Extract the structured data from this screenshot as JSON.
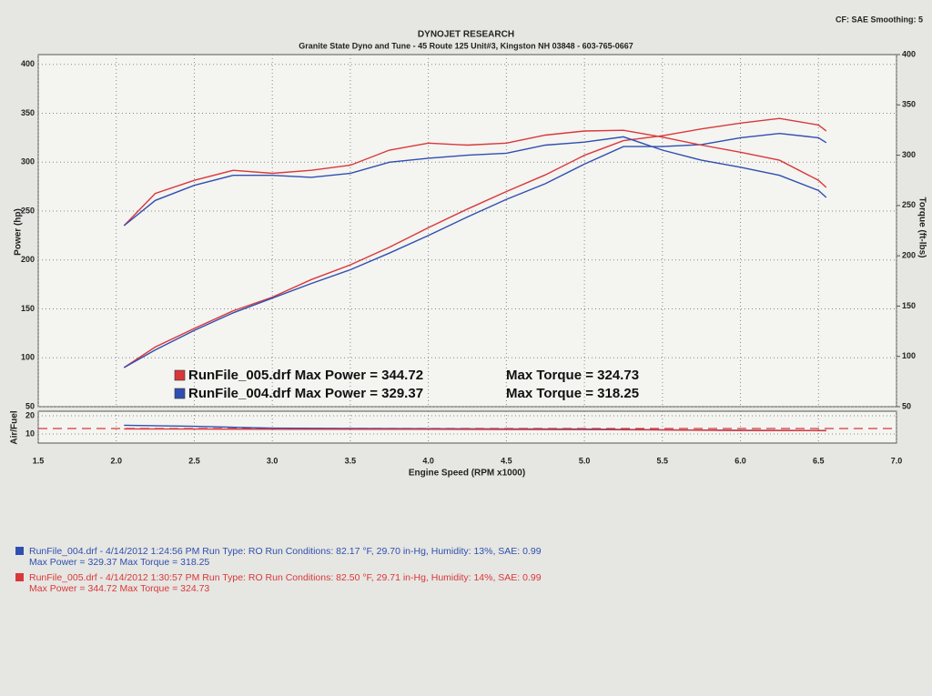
{
  "chart_data": [
    {
      "type": "line",
      "title": "DYNOJET RESEARCH",
      "subtitle": "Granite State Dyno and Tune - 45 Route 125 Unit#3, Kingston NH 03848 - 603-765-0667",
      "corner_note": "CF: SAE Smoothing: 5",
      "ylabel": "Power (hp)",
      "y2label": "Torque (ft-lbs)",
      "xlim": [
        1.5,
        7.0
      ],
      "ylim": [
        50,
        410
      ],
      "yticks": [
        50,
        100,
        150,
        200,
        250,
        300,
        350,
        400
      ],
      "y2lim": [
        50,
        400
      ],
      "y2ticks": [
        50,
        100,
        150,
        200,
        250,
        300,
        350,
        400
      ],
      "grid": true,
      "x": [
        2.05,
        2.25,
        2.5,
        2.75,
        3.0,
        3.25,
        3.5,
        3.75,
        4.0,
        4.25,
        4.5,
        4.75,
        5.0,
        5.25,
        5.5,
        5.75,
        6.0,
        6.25,
        6.5,
        6.55
      ],
      "series": [
        {
          "name": "RunFile_005.drf Max Power = 344.72",
          "color": "#d9383a",
          "values": [
            90,
            111,
            130,
            148,
            162,
            180,
            195,
            213,
            233,
            252,
            270,
            287,
            307,
            322,
            327,
            334,
            340,
            344.72,
            338,
            332
          ]
        },
        {
          "name": "RunFile_004.drf Max Power = 329.37",
          "color": "#2f4fb0",
          "values": [
            90,
            108,
            128,
            146,
            161,
            176,
            190,
            207,
            225,
            244,
            262,
            278,
            298,
            316,
            316,
            318,
            325,
            329.37,
            325,
            320
          ]
        },
        {
          "name": "Max Torque = 324.73",
          "color": "#d9383a",
          "axis": "y2",
          "values": [
            230,
            262,
            275,
            285,
            282,
            285,
            290,
            305,
            312,
            310,
            312,
            320,
            324,
            324.73,
            318,
            310,
            303,
            295,
            275,
            268
          ]
        },
        {
          "name": "Max Torque = 318.25",
          "color": "#2f4fb0",
          "axis": "y2",
          "values": [
            230,
            255,
            270,
            280,
            280,
            278,
            282,
            293,
            297,
            300,
            302,
            310,
            313,
            318.25,
            305,
            295,
            288,
            280,
            265,
            258
          ]
        }
      ]
    },
    {
      "type": "line",
      "ylabel": "Air/Fuel",
      "xlabel": "Engine Speed (RPM x1000)",
      "xlim": [
        1.5,
        7.0
      ],
      "xticks": [
        1.5,
        {
          "value": 2,
          "label": "2.0"
        },
        2.5,
        {
          "value": 3,
          "label": "3.0"
        },
        3.5,
        {
          "value": 4,
          "label": "4.0"
        },
        4.5,
        {
          "value": 5,
          "label": "5.0"
        },
        5.5,
        {
          "value": 6,
          "label": "6.0"
        },
        6.5,
        {
          "value": 7,
          "label": "7.0"
        }
      ],
      "ylim": [
        5,
        22.5
      ],
      "yticks": [
        10,
        20
      ],
      "grid": true,
      "reference_line": {
        "value": 13,
        "color": "#d9383a",
        "dashed": true
      },
      "x": [
        2.05,
        2.5,
        3.0,
        3.5,
        4.0,
        4.5,
        5.0,
        5.5,
        6.0,
        6.55
      ],
      "series": [
        {
          "color": "#2f4fb0",
          "values": [
            14.8,
            14.2,
            13.2,
            13.0,
            12.9,
            12.8,
            12.7,
            12.3,
            12.0,
            11.9
          ]
        },
        {
          "color": "#d9383a",
          "values": [
            12.8,
            12.7,
            12.6,
            12.6,
            12.6,
            12.5,
            12.4,
            12.2,
            11.9,
            11.8
          ]
        }
      ]
    }
  ],
  "runs": [
    {
      "color": "#2f4fb0",
      "line1": "RunFile_004.drf - 4/14/2012 1:24:56 PM  Run Type: RO  Run Conditions: 82.17 °F, 29.70 in-Hg,  Humidity:  13%, SAE: 0.99",
      "line2": "Max Power = 329.37  Max Torque = 318.25"
    },
    {
      "color": "#d9383a",
      "line1": "RunFile_005.drf - 4/14/2012 1:30:57 PM  Run Type: RO  Run Conditions: 82.50 °F, 29.71 in-Hg,  Humidity:  14%, SAE: 0.99",
      "line2": "Max Power = 344.72  Max Torque = 324.73"
    }
  ]
}
